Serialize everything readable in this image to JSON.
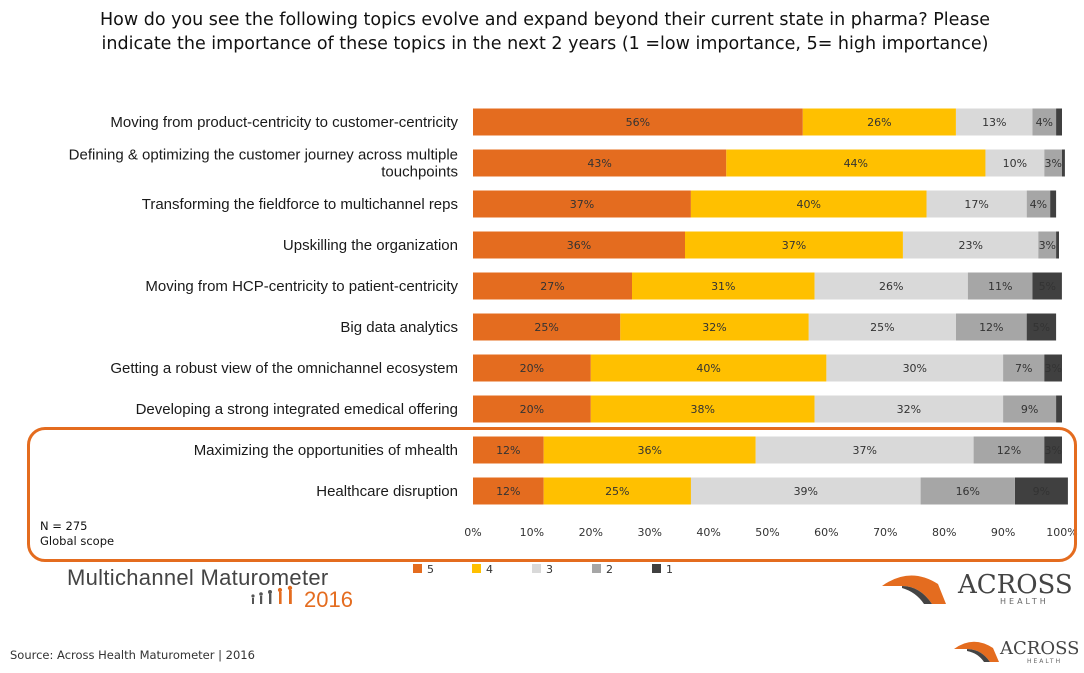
{
  "title_lines": [
    "How do you see the following topics evolve and expand beyond their current state in pharma? Please",
    "indicate the importance of these topics in the next 2 years (1 =low importance, 5= high importance)"
  ],
  "note": {
    "n": "N = 275",
    "scope": "Global scope"
  },
  "logos": {
    "maturometer_name": "Multichannel Maturometer",
    "maturometer_year": "2016",
    "across": "ACROSS",
    "health": "HEALTH"
  },
  "source": "Source: Across Health Maturometer  |  2016",
  "colors": {
    "5": "#E46C1F",
    "4": "#FFC000",
    "3": "#D9D9D9",
    "2": "#A6A6A6",
    "1": "#404040",
    "highlight": "#E46C1F"
  },
  "chart_data": {
    "type": "bar",
    "orientation": "horizontal",
    "stacked": true,
    "categories": [
      "Moving from product-centricity to customer-centricity",
      "Defining & optimizing the customer journey across multiple touchpoints",
      "Transforming the fieldforce to multichannel reps",
      "Upskilling the organization",
      "Moving from HCP-centricity to patient-centricity",
      "Big data analytics",
      "Getting a robust view of the omnichannel ecosystem",
      "Developing a strong integrated emedical offering",
      "Maximizing the opportunities of mhealth",
      "Healthcare disruption"
    ],
    "category_lines": [
      [
        "Moving from product-centricity to customer-centricity"
      ],
      [
        "Defining & optimizing the customer journey across multiple",
        "touchpoints"
      ],
      [
        "Transforming the fieldforce to multichannel reps"
      ],
      [
        "Upskilling the organization"
      ],
      [
        "Moving from HCP-centricity to patient-centricity"
      ],
      [
        "Big data analytics"
      ],
      [
        "Getting a robust view of the omnichannel ecosystem"
      ],
      [
        "Developing a strong integrated emedical offering"
      ],
      [
        "Maximizing the opportunities of mhealth"
      ],
      [
        "Healthcare disruption"
      ]
    ],
    "series": [
      {
        "name": "5",
        "values": [
          56,
          43,
          37,
          36,
          27,
          25,
          20,
          20,
          12,
          12
        ],
        "labels": [
          "56%",
          "43%",
          "37%",
          "36%",
          "27%",
          "25%",
          "20%",
          "20%",
          "12%",
          "12%"
        ]
      },
      {
        "name": "4",
        "values": [
          26,
          44,
          40,
          37,
          31,
          32,
          40,
          38,
          36,
          25
        ],
        "labels": [
          "26%",
          "44%",
          "40%",
          "37%",
          "31%",
          "32%",
          "40%",
          "38%",
          "36%",
          "25%"
        ]
      },
      {
        "name": "3",
        "values": [
          13,
          10,
          17,
          23,
          26,
          25,
          30,
          32,
          37,
          39
        ],
        "labels": [
          "13%",
          "10%",
          "17%",
          "23%",
          "26%",
          "25%",
          "30%",
          "32%",
          "37%",
          "39%"
        ]
      },
      {
        "name": "2",
        "values": [
          4,
          3,
          4,
          3,
          11,
          12,
          7,
          9,
          12,
          16
        ],
        "labels": [
          "4%",
          "3%",
          "4%",
          "3%",
          "11%",
          "12%",
          "7%",
          "9%",
          "12%",
          "16%"
        ]
      },
      {
        "name": "1",
        "values": [
          1,
          0.5,
          1,
          0.5,
          5,
          5,
          3,
          1,
          3,
          9
        ],
        "labels": [
          "",
          "",
          "",
          "",
          "5%",
          "5%",
          "3%",
          "",
          "3%",
          "9%"
        ]
      }
    ],
    "x_ticks": [
      "0%",
      "10%",
      "20%",
      "30%",
      "40%",
      "50%",
      "60%",
      "70%",
      "80%",
      "90%",
      "100%"
    ],
    "xlim": [
      0,
      100
    ],
    "grid": false,
    "legend_position": "bottom",
    "highlighted_categories": [
      "Maximizing the opportunities of mhealth",
      "Healthcare disruption"
    ]
  }
}
